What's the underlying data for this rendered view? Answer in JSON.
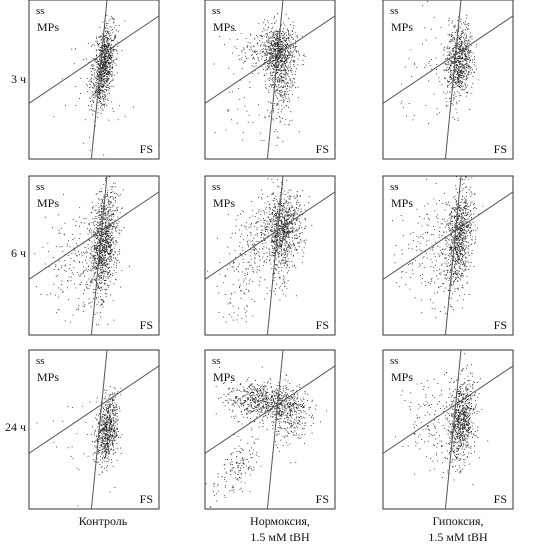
{
  "labels": {
    "row_labels": [
      "3 ч",
      "6 ч",
      "24 ч"
    ],
    "col_labels": [
      {
        "line1": "Контроль",
        "line2": ""
      },
      {
        "line1": "Нормоксия,",
        "line2": "1.5 мМ tBH"
      },
      {
        "line1": "Гипоксия,",
        "line2": "1.5 мМ tBH"
      }
    ],
    "panel_text": {
      "ss": "ss",
      "mps": "MPs",
      "fs": "FS"
    }
  },
  "colors": {
    "frame": "#333333",
    "gate": "#555555",
    "dot": "#222222",
    "background": "#ffffff"
  },
  "chart_data": [
    {
      "type": "scatter",
      "row": 0,
      "col": 0,
      "xlabel": "FS",
      "ylabel": "ss",
      "annotation": "MPs",
      "xlim": [
        0,
        100
      ],
      "ylim": [
        0,
        100
      ],
      "grid": false,
      "gate_lines": [
        [
          [
            0,
            35
          ],
          [
            100,
            90
          ]
        ],
        [
          [
            48,
            0
          ],
          [
            60,
            100
          ]
        ]
      ],
      "clusters": [
        {
          "center": [
            57,
            58
          ],
          "spread": [
            4,
            13
          ],
          "tilt": 0.15,
          "count": 900
        },
        {
          "center": [
            50,
            50
          ],
          "spread": [
            14,
            18
          ],
          "tilt": 0,
          "count": 40
        }
      ]
    },
    {
      "type": "scatter",
      "row": 0,
      "col": 1,
      "xlabel": "FS",
      "ylabel": "ss",
      "annotation": "MPs",
      "xlim": [
        0,
        100
      ],
      "ylim": [
        0,
        100
      ],
      "grid": false,
      "gate_lines": [
        [
          [
            0,
            35
          ],
          [
            100,
            90
          ]
        ],
        [
          [
            48,
            0
          ],
          [
            60,
            100
          ]
        ]
      ],
      "clusters": [
        {
          "center": [
            56,
            68
          ],
          "spread": [
            7,
            8
          ],
          "tilt": 0,
          "count": 600
        },
        {
          "center": [
            58,
            52
          ],
          "spread": [
            5,
            16
          ],
          "tilt": 0,
          "count": 350
        },
        {
          "center": [
            40,
            68
          ],
          "spread": [
            12,
            6
          ],
          "tilt": 0,
          "count": 120
        },
        {
          "center": [
            30,
            30
          ],
          "spread": [
            12,
            12
          ],
          "tilt": 0,
          "count": 30
        }
      ]
    },
    {
      "type": "scatter",
      "row": 0,
      "col": 2,
      "xlabel": "FS",
      "ylabel": "ss",
      "annotation": "MPs",
      "xlim": [
        0,
        100
      ],
      "ylim": [
        0,
        100
      ],
      "grid": false,
      "gate_lines": [
        [
          [
            0,
            35
          ],
          [
            100,
            90
          ]
        ],
        [
          [
            48,
            0
          ],
          [
            60,
            100
          ]
        ]
      ],
      "clusters": [
        {
          "center": [
            58,
            62
          ],
          "spread": [
            5,
            12
          ],
          "tilt": 0.1,
          "count": 750
        },
        {
          "center": [
            38,
            52
          ],
          "spread": [
            12,
            18
          ],
          "tilt": 0,
          "count": 50
        }
      ]
    },
    {
      "type": "scatter",
      "row": 1,
      "col": 0,
      "xlabel": "FS",
      "ylabel": "ss",
      "annotation": "MPs",
      "xlim": [
        0,
        100
      ],
      "ylim": [
        0,
        100
      ],
      "grid": false,
      "gate_lines": [
        [
          [
            0,
            35
          ],
          [
            100,
            90
          ]
        ],
        [
          [
            48,
            0
          ],
          [
            60,
            100
          ]
        ]
      ],
      "clusters": [
        {
          "center": [
            57,
            58
          ],
          "spread": [
            5,
            16
          ],
          "tilt": 0.1,
          "count": 1000
        },
        {
          "center": [
            38,
            46
          ],
          "spread": [
            14,
            18
          ],
          "tilt": 0,
          "count": 220
        }
      ]
    },
    {
      "type": "scatter",
      "row": 1,
      "col": 1,
      "xlabel": "FS",
      "ylabel": "ss",
      "annotation": "MPs",
      "xlim": [
        0,
        100
      ],
      "ylim": [
        0,
        100
      ],
      "grid": false,
      "gate_lines": [
        [
          [
            0,
            35
          ],
          [
            100,
            90
          ]
        ],
        [
          [
            48,
            0
          ],
          [
            60,
            100
          ]
        ]
      ],
      "clusters": [
        {
          "center": [
            60,
            70
          ],
          "spread": [
            8,
            10
          ],
          "tilt": 0,
          "count": 650
        },
        {
          "center": [
            58,
            54
          ],
          "spread": [
            5,
            14
          ],
          "tilt": 0,
          "count": 250
        },
        {
          "center": [
            40,
            58
          ],
          "spread": [
            10,
            12
          ],
          "tilt": 0,
          "count": 180
        },
        {
          "center": [
            26,
            26
          ],
          "spread": [
            8,
            12
          ],
          "tilt": 0,
          "count": 80
        }
      ]
    },
    {
      "type": "scatter",
      "row": 1,
      "col": 2,
      "xlabel": "FS",
      "ylabel": "ss",
      "annotation": "MPs",
      "xlim": [
        0,
        100
      ],
      "ylim": [
        0,
        100
      ],
      "grid": false,
      "gate_lines": [
        [
          [
            0,
            35
          ],
          [
            100,
            90
          ]
        ],
        [
          [
            48,
            0
          ],
          [
            60,
            100
          ]
        ]
      ],
      "clusters": [
        {
          "center": [
            58,
            62
          ],
          "spread": [
            5,
            16
          ],
          "tilt": 0.1,
          "count": 850
        },
        {
          "center": [
            36,
            52
          ],
          "spread": [
            12,
            18
          ],
          "tilt": 0,
          "count": 200
        }
      ]
    },
    {
      "type": "scatter",
      "row": 2,
      "col": 0,
      "xlabel": "FS",
      "ylabel": "ss",
      "annotation": "MPs",
      "xlim": [
        0,
        100
      ],
      "ylim": [
        0,
        100
      ],
      "grid": false,
      "gate_lines": [
        [
          [
            0,
            35
          ],
          [
            100,
            90
          ]
        ],
        [
          [
            48,
            0
          ],
          [
            60,
            100
          ]
        ]
      ],
      "clusters": [
        {
          "center": [
            60,
            50
          ],
          "spread": [
            4,
            11
          ],
          "tilt": 0.1,
          "count": 650
        },
        {
          "center": [
            45,
            45
          ],
          "spread": [
            15,
            18
          ],
          "tilt": 0,
          "count": 40
        }
      ]
    },
    {
      "type": "scatter",
      "row": 2,
      "col": 1,
      "xlabel": "FS",
      "ylabel": "ss",
      "annotation": "MPs",
      "xlim": [
        0,
        100
      ],
      "ylim": [
        0,
        100
      ],
      "grid": false,
      "gate_lines": [
        [
          [
            0,
            35
          ],
          [
            100,
            90
          ]
        ],
        [
          [
            48,
            0
          ],
          [
            60,
            100
          ]
        ]
      ],
      "clusters": [
        {
          "center": [
            45,
            68
          ],
          "spread": [
            14,
            6
          ],
          "tilt": -0.3,
          "count": 700
        },
        {
          "center": [
            65,
            60
          ],
          "spread": [
            7,
            10
          ],
          "tilt": 0,
          "count": 250
        },
        {
          "center": [
            25,
            25
          ],
          "spread": [
            7,
            10
          ],
          "tilt": 0.5,
          "count": 150
        }
      ]
    },
    {
      "type": "scatter",
      "row": 2,
      "col": 2,
      "xlabel": "FS",
      "ylabel": "ss",
      "annotation": "MPs",
      "xlim": [
        0,
        100
      ],
      "ylim": [
        0,
        100
      ],
      "grid": false,
      "gate_lines": [
        [
          [
            0,
            35
          ],
          [
            100,
            90
          ]
        ],
        [
          [
            48,
            0
          ],
          [
            60,
            100
          ]
        ]
      ],
      "clusters": [
        {
          "center": [
            60,
            55
          ],
          "spread": [
            5,
            13
          ],
          "tilt": 0.1,
          "count": 750
        },
        {
          "center": [
            40,
            55
          ],
          "spread": [
            12,
            14
          ],
          "tilt": 0,
          "count": 150
        }
      ]
    }
  ]
}
